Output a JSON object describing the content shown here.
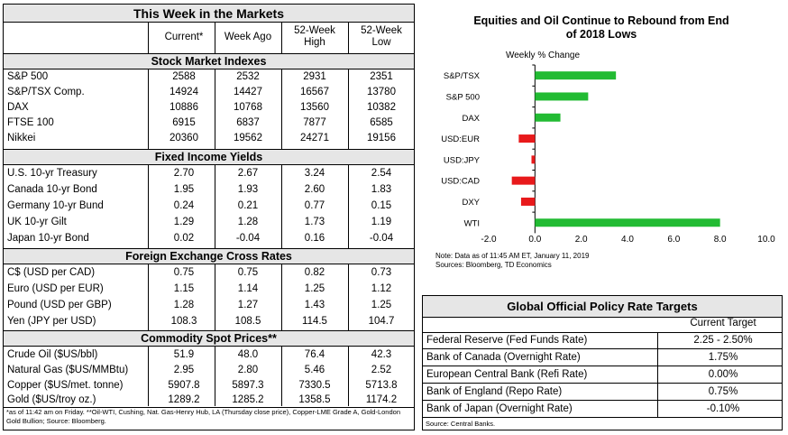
{
  "markets": {
    "title": "This Week in the Markets",
    "columns": [
      "Current*",
      "Week Ago",
      "52-Week High",
      "52-Week Low"
    ],
    "col_high_line1": "52-Week",
    "col_high_line2": "High",
    "col_low_line1": "52-Week",
    "col_low_line2": "Low",
    "sections": [
      {
        "title": "Stock Market Indexes",
        "rows": [
          {
            "label": "S&P 500",
            "current": "2588",
            "week_ago": "2532",
            "high": "2931",
            "low": "2351"
          },
          {
            "label": "S&P/TSX Comp.",
            "current": "14924",
            "week_ago": "14427",
            "high": "16567",
            "low": "13780"
          },
          {
            "label": "DAX",
            "current": "10886",
            "week_ago": "10768",
            "high": "13560",
            "low": "10382"
          },
          {
            "label": "FTSE 100",
            "current": "6915",
            "week_ago": "6837",
            "high": "7877",
            "low": "6585"
          },
          {
            "label": "Nikkei",
            "current": "20360",
            "week_ago": "19562",
            "high": "24271",
            "low": "19156"
          }
        ]
      },
      {
        "title": "Fixed Income Yields",
        "rows": [
          {
            "label": "U.S. 10-yr Treasury",
            "current": "2.70",
            "week_ago": "2.67",
            "high": "3.24",
            "low": "2.54"
          },
          {
            "label": "Canada 10-yr Bond",
            "current": "1.95",
            "week_ago": "1.93",
            "high": "2.60",
            "low": "1.83"
          },
          {
            "label": "Germany 10-yr Bund",
            "current": "0.24",
            "week_ago": "0.21",
            "high": "0.77",
            "low": "0.15"
          },
          {
            "label": "UK 10-yr Gilt",
            "current": "1.29",
            "week_ago": "1.28",
            "high": "1.73",
            "low": "1.19"
          },
          {
            "label": "Japan 10-yr Bond",
            "current": "0.02",
            "week_ago": "-0.04",
            "high": "0.16",
            "low": "-0.04"
          }
        ]
      },
      {
        "title": "Foreign Exchange Cross Rates",
        "rows": [
          {
            "label": "C$ (USD per CAD)",
            "current": "0.75",
            "week_ago": "0.75",
            "high": "0.82",
            "low": "0.73"
          },
          {
            "label": "Euro (USD per EUR)",
            "current": "1.15",
            "week_ago": "1.14",
            "high": "1.25",
            "low": "1.12"
          },
          {
            "label": "Pound (USD per GBP)",
            "current": "1.28",
            "week_ago": "1.27",
            "high": "1.43",
            "low": "1.25"
          },
          {
            "label": "Yen (JPY per USD)",
            "current": "108.3",
            "week_ago": "108.5",
            "high": "114.5",
            "low": "104.7"
          }
        ]
      },
      {
        "title": "Commodity Spot Prices**",
        "rows": [
          {
            "label": "Crude Oil ($US/bbl)",
            "current": "51.9",
            "week_ago": "48.0",
            "high": "76.4",
            "low": "42.3"
          },
          {
            "label": "Natural Gas ($US/MMBtu)",
            "current": "2.95",
            "week_ago": "2.80",
            "high": "5.46",
            "low": "2.52"
          },
          {
            "label": "Copper ($US/met. tonne)",
            "current": "5907.8",
            "week_ago": "5897.3",
            "high": "7330.5",
            "low": "5713.8"
          },
          {
            "label": "Gold ($US/troy oz.)",
            "current": "1289.2",
            "week_ago": "1285.2",
            "high": "1358.5",
            "low": "1174.2"
          }
        ]
      }
    ],
    "footnote": "*as of 11:42 am on Friday. **Oil-WTI, Cushing, Nat. Gas-Henry Hub, LA (Thursday close price), Copper-LME Grade A, Gold-London Gold Bullion; Source: Bloomberg."
  },
  "chart_data": {
    "type": "bar",
    "orientation": "horizontal",
    "title": "Equities and Oil Continue to Rebound from End of 2018 Lows",
    "title_line1": "Equities and Oil Continue to Rebound from End",
    "title_line2": "of 2018 Lows",
    "ylabel": "Weekly % Change",
    "categories": [
      "S&P/TSX",
      "S&P 500",
      "DAX",
      "USD:EUR",
      "USD:JPY",
      "USD:CAD",
      "DXY",
      "WTI"
    ],
    "values": [
      3.5,
      2.3,
      1.1,
      -0.7,
      -0.15,
      -1.0,
      -0.6,
      8.0
    ],
    "xlim": [
      -2.0,
      10.0
    ],
    "xticks": [
      "-2.0",
      "0.0",
      "2.0",
      "4.0",
      "6.0",
      "8.0",
      "10.0"
    ],
    "positive_color": "#22bb33",
    "negative_color": "#e8191b",
    "note": "Note: Data as of  11:45 AM  ET,  January 11, 2019",
    "source": "Sources: Bloomberg, TD Economics"
  },
  "policy": {
    "title": "Global Official Policy Rate Targets",
    "column": "Current Target",
    "rows": [
      {
        "label": "Federal Reserve (Fed Funds Rate)",
        "value": "2.25 - 2.50%"
      },
      {
        "label": "Bank of Canada (Overnight Rate)",
        "value": "1.75%"
      },
      {
        "label": "European Central Bank (Refi Rate)",
        "value": "0.00%"
      },
      {
        "label": "Bank of England (Repo Rate)",
        "value": "0.75%"
      },
      {
        "label": "Bank of Japan (Overnight Rate)",
        "value": "-0.10%"
      }
    ],
    "source": "Source: Central Banks."
  }
}
